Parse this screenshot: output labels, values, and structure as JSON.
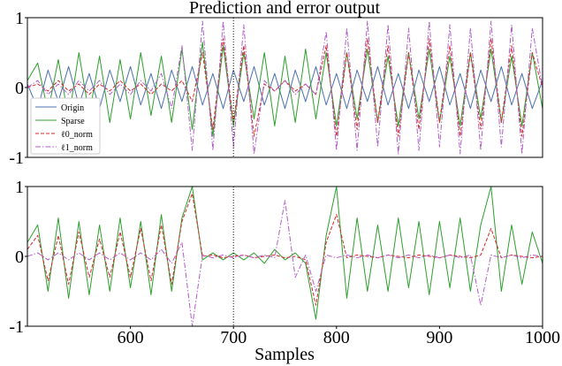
{
  "figure": {
    "title": "Prediction and error output",
    "xlabel": "Samples"
  },
  "colors": {
    "Origin": "#4c72b0",
    "Sparse": "#2ca02c",
    "l0_norm": "#d62728",
    "l1_norm": "#b05ec8",
    "marker": "#000000"
  },
  "chart_data": [
    {
      "type": "line",
      "panel": "top",
      "title": "Prediction and error output",
      "xlim": [
        500,
        1000
      ],
      "ylim": [
        -1,
        1
      ],
      "yticks": [
        "-1",
        "0",
        "1"
      ],
      "xticks": [],
      "vline_x": 700,
      "grid": false,
      "legend_position": "center-left",
      "legend": [
        "Origin",
        "Sparse",
        "ℓ0_norm",
        "ℓ1_norm"
      ],
      "series": [
        {
          "name": "Origin",
          "key": "Origin",
          "style": "solid",
          "x": [
            500,
            510,
            520,
            530,
            540,
            550,
            560,
            570,
            580,
            590,
            600,
            610,
            620,
            630,
            640,
            650,
            660,
            670,
            680,
            690,
            700,
            710,
            720,
            730,
            740,
            750,
            760,
            770,
            780,
            790,
            800,
            810,
            820,
            830,
            840,
            850,
            860,
            870,
            880,
            890,
            900,
            910,
            920,
            930,
            940,
            950,
            960,
            970,
            980,
            990,
            1000
          ],
          "values": [
            0.05,
            -0.3,
            0.25,
            -0.2,
            0.3,
            -0.25,
            0.2,
            -0.3,
            0.25,
            -0.2,
            0.3,
            -0.25,
            0.2,
            -0.3,
            0.25,
            -0.2,
            0.3,
            -0.25,
            0.2,
            -0.3,
            0.25,
            -0.2,
            0.3,
            -0.25,
            0.2,
            -0.3,
            0.25,
            -0.2,
            0.3,
            -0.25,
            0.2,
            -0.3,
            0.25,
            -0.2,
            0.3,
            -0.25,
            0.2,
            -0.3,
            0.25,
            -0.2,
            0.3,
            -0.25,
            0.2,
            -0.3,
            0.25,
            -0.2,
            0.3,
            -0.25,
            0.2,
            -0.3,
            0.1
          ]
        },
        {
          "name": "Sparse",
          "key": "Sparse",
          "style": "solid",
          "x": [
            500,
            510,
            520,
            530,
            540,
            550,
            560,
            570,
            580,
            590,
            600,
            610,
            620,
            630,
            640,
            650,
            660,
            670,
            680,
            690,
            700,
            710,
            720,
            730,
            740,
            750,
            760,
            770,
            780,
            790,
            800,
            810,
            820,
            830,
            840,
            850,
            860,
            870,
            880,
            890,
            900,
            910,
            920,
            930,
            940,
            950,
            960,
            970,
            980,
            990,
            1000
          ],
          "values": [
            0.1,
            0.35,
            -0.35,
            0.4,
            -0.45,
            0.5,
            -0.4,
            0.45,
            -0.5,
            0.4,
            -0.45,
            0.5,
            -0.4,
            0.45,
            -0.5,
            0.55,
            -0.6,
            0.65,
            -0.7,
            0.6,
            -0.55,
            0.5,
            -0.45,
            0.5,
            -0.55,
            0.45,
            -0.5,
            0.55,
            -0.45,
            0.5,
            -0.55,
            0.5,
            -0.45,
            0.55,
            -0.5,
            0.45,
            -0.55,
            0.5,
            -0.45,
            0.55,
            -0.5,
            0.45,
            -0.55,
            0.5,
            -0.45,
            0.55,
            -0.5,
            0.45,
            -0.55,
            0.5,
            -0.3
          ]
        },
        {
          "name": "ℓ0_norm",
          "key": "l0_norm",
          "style": "dashed",
          "x": [
            500,
            510,
            520,
            530,
            540,
            550,
            560,
            570,
            580,
            590,
            600,
            610,
            620,
            630,
            640,
            650,
            660,
            670,
            680,
            690,
            700,
            710,
            720,
            730,
            740,
            750,
            760,
            770,
            780,
            790,
            800,
            810,
            820,
            830,
            840,
            850,
            860,
            870,
            880,
            890,
            900,
            910,
            920,
            930,
            940,
            950,
            960,
            970,
            980,
            990,
            1000
          ],
          "values": [
            0.0,
            0.05,
            -0.05,
            0.1,
            -0.05,
            0.05,
            -0.1,
            0.05,
            -0.05,
            0.1,
            -0.05,
            0.05,
            -0.1,
            0.05,
            -0.05,
            0.1,
            -0.2,
            0.5,
            -0.6,
            0.7,
            -0.5,
            0.6,
            -0.7,
            0.05,
            -0.05,
            0.1,
            -0.05,
            0.05,
            -0.1,
            0.6,
            -0.7,
            0.5,
            -0.6,
            0.7,
            -0.5,
            0.6,
            -0.7,
            0.5,
            -0.6,
            0.7,
            -0.5,
            0.6,
            -0.7,
            0.5,
            -0.6,
            0.7,
            -0.5,
            0.6,
            -0.7,
            0.5,
            0.0
          ]
        },
        {
          "name": "ℓ1_norm",
          "key": "l1_norm",
          "style": "dashdot",
          "x": [
            500,
            510,
            520,
            530,
            540,
            550,
            560,
            570,
            580,
            590,
            600,
            610,
            620,
            630,
            640,
            650,
            660,
            670,
            680,
            690,
            700,
            710,
            720,
            730,
            740,
            750,
            760,
            770,
            780,
            790,
            800,
            810,
            820,
            830,
            840,
            850,
            860,
            870,
            880,
            890,
            900,
            910,
            920,
            930,
            940,
            950,
            960,
            970,
            980,
            990,
            1000
          ],
          "values": [
            0.0,
            0.1,
            -0.1,
            0.05,
            -0.1,
            0.1,
            -0.05,
            0.1,
            -0.1,
            0.05,
            -0.1,
            0.1,
            -0.05,
            0.2,
            -0.3,
            0.6,
            -0.9,
            0.95,
            -0.9,
            0.95,
            -0.85,
            0.9,
            -0.95,
            0.1,
            -0.05,
            0.1,
            -0.1,
            0.05,
            -0.1,
            0.8,
            -0.9,
            0.85,
            -0.9,
            0.95,
            -0.85,
            0.9,
            -0.95,
            0.85,
            -0.9,
            0.95,
            -0.85,
            0.9,
            -0.95,
            0.85,
            -0.9,
            0.95,
            -0.85,
            0.9,
            -0.95,
            0.85,
            0.0
          ]
        }
      ]
    },
    {
      "type": "line",
      "panel": "bottom",
      "xlim": [
        500,
        1000
      ],
      "ylim": [
        -1,
        1
      ],
      "yticks": [
        "-1",
        "0",
        "1"
      ],
      "xticks": [
        "600",
        "700",
        "800",
        "900",
        "1000"
      ],
      "xlabel": "Samples",
      "vline_x": 700,
      "grid": false,
      "series": [
        {
          "name": "Sparse",
          "key": "Sparse",
          "style": "solid",
          "x": [
            500,
            510,
            520,
            530,
            540,
            550,
            560,
            570,
            580,
            590,
            600,
            610,
            620,
            630,
            640,
            650,
            660,
            670,
            680,
            690,
            700,
            710,
            720,
            730,
            740,
            750,
            760,
            770,
            780,
            790,
            800,
            810,
            820,
            830,
            840,
            850,
            860,
            870,
            880,
            890,
            900,
            910,
            920,
            930,
            940,
            950,
            960,
            970,
            980,
            990,
            1000
          ],
          "values": [
            0.2,
            0.45,
            -0.5,
            0.55,
            -0.6,
            0.5,
            -0.55,
            0.45,
            -0.5,
            0.55,
            -0.45,
            0.5,
            -0.55,
            0.6,
            -0.5,
            0.55,
            1.0,
            -0.05,
            0.05,
            -0.05,
            0.05,
            -0.05,
            0.05,
            -0.1,
            0.1,
            -0.05,
            0.05,
            -0.1,
            -0.9,
            0.3,
            1.0,
            -0.6,
            0.55,
            -0.5,
            0.45,
            -0.5,
            0.55,
            -0.45,
            0.5,
            -0.55,
            0.5,
            -0.45,
            0.55,
            -0.5,
            0.45,
            1.0,
            -0.5,
            0.45,
            -0.4,
            0.35,
            -0.1
          ]
        },
        {
          "name": "ℓ0_norm",
          "key": "l0_norm",
          "style": "dashed",
          "x": [
            500,
            510,
            520,
            530,
            540,
            550,
            560,
            570,
            580,
            590,
            600,
            610,
            620,
            630,
            640,
            650,
            660,
            670,
            680,
            690,
            700,
            710,
            720,
            730,
            740,
            750,
            760,
            770,
            780,
            790,
            800,
            810,
            820,
            830,
            840,
            850,
            860,
            870,
            880,
            890,
            900,
            910,
            920,
            930,
            940,
            950,
            960,
            970,
            980,
            990,
            1000
          ],
          "values": [
            0.1,
            0.3,
            -0.35,
            0.3,
            -0.4,
            0.35,
            -0.3,
            0.25,
            -0.3,
            0.35,
            -0.3,
            0.4,
            -0.35,
            0.45,
            -0.4,
            0.5,
            0.9,
            0.0,
            0.02,
            -0.02,
            0.0,
            0.02,
            -0.02,
            0.0,
            0.02,
            -0.02,
            0.0,
            -0.05,
            -0.7,
            0.2,
            0.6,
            -0.02,
            0.02,
            0.0,
            -0.02,
            0.02,
            0.0,
            -0.02,
            0.02,
            0.0,
            -0.02,
            0.02,
            0.0,
            -0.02,
            0.02,
            0.4,
            -0.02,
            0.02,
            0.0,
            -0.02,
            0.0
          ]
        },
        {
          "name": "ℓ1_norm",
          "key": "l1_norm",
          "style": "dashdot",
          "x": [
            500,
            510,
            520,
            530,
            540,
            550,
            560,
            570,
            580,
            590,
            600,
            610,
            620,
            630,
            640,
            650,
            660,
            670,
            680,
            690,
            700,
            710,
            720,
            730,
            740,
            750,
            760,
            770,
            780,
            790,
            800,
            810,
            820,
            830,
            840,
            850,
            860,
            870,
            880,
            890,
            900,
            910,
            920,
            930,
            940,
            950,
            960,
            970,
            980,
            990,
            1000
          ],
          "values": [
            0.0,
            0.05,
            -0.05,
            0.05,
            -0.05,
            0.05,
            -0.05,
            0.05,
            -0.05,
            0.05,
            -0.05,
            0.05,
            -0.05,
            0.1,
            -0.1,
            0.2,
            -1.0,
            0.02,
            -0.02,
            0.02,
            -0.02,
            0.02,
            -0.02,
            0.02,
            -0.02,
            0.8,
            -0.3,
            0.02,
            -0.5,
            0.02,
            -0.02,
            0.02,
            -0.02,
            0.02,
            -0.02,
            0.02,
            -0.02,
            0.02,
            -0.02,
            0.02,
            -0.02,
            0.02,
            -0.02,
            0.02,
            -0.7,
            0.02,
            -0.02,
            0.02,
            -0.02,
            0.02,
            0.0
          ]
        }
      ]
    }
  ]
}
